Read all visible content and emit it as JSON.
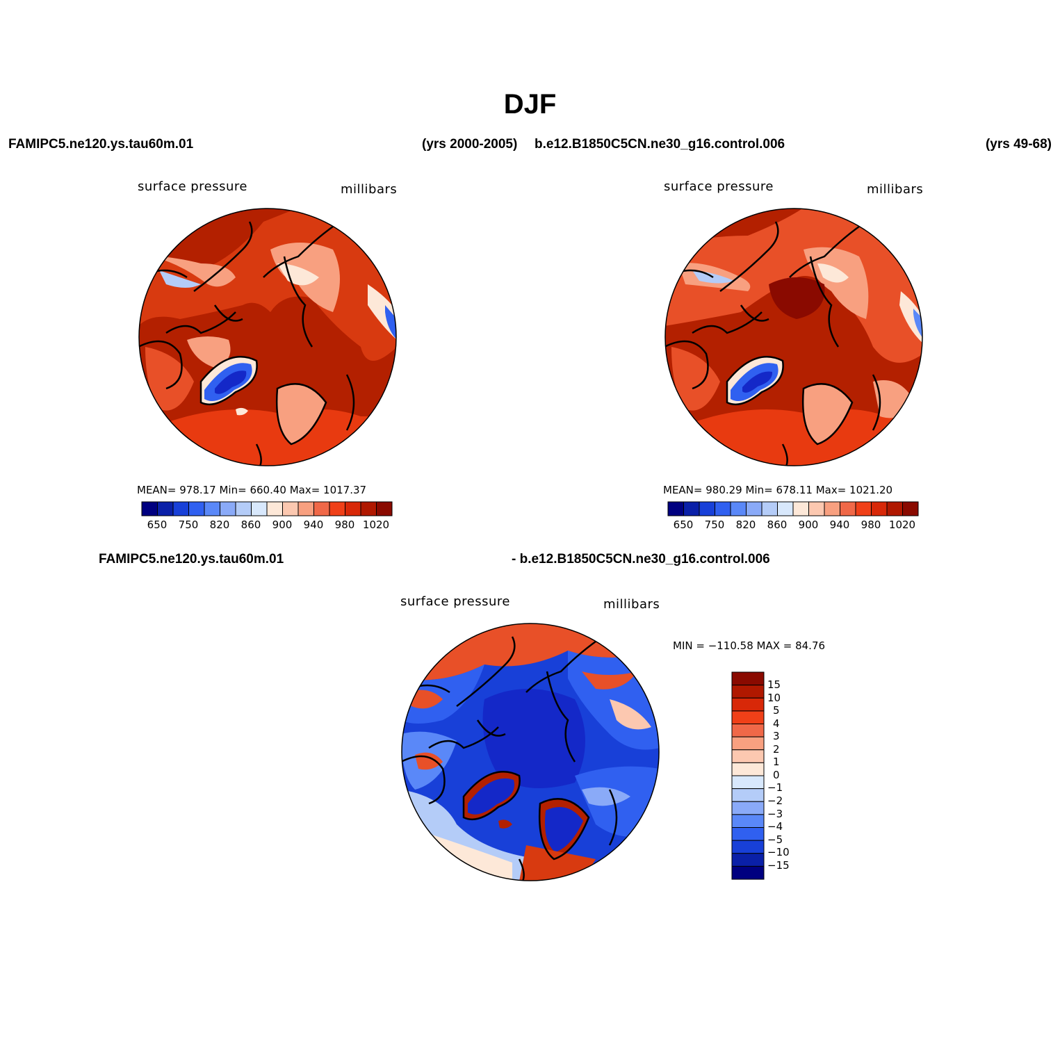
{
  "title": "DJF",
  "top_left_label": "FAMIPC5.ne120.ys.tau60m.01",
  "top_mid_label": "(yrs 2000-2005)",
  "top_mid2_label": "b.e12.B1850C5CN.ne30_g16.control.006",
  "top_right_label": "(yrs 49-68)",
  "panels": [
    {
      "variable": "surface pressure",
      "units": "millibars",
      "stats": "MEAN=  978.17   Min=  660.40   Max=  1017.37"
    },
    {
      "variable": "surface pressure",
      "units": "millibars",
      "stats": "MEAN=  980.29   Min=  678.11   Max=  1021.20"
    },
    {
      "variable": "surface pressure",
      "units": "millibars",
      "stats": "MIN = −110.58 MAX =   84.76"
    }
  ],
  "diff_label_left": "FAMIPC5.ne120.ys.tau60m.01",
  "diff_label_right": "- b.e12.B1850C5CN.ne30_g16.control.006",
  "horizontal_colorbar": {
    "colors": [
      "#000080",
      "#0a20a8",
      "#1840d8",
      "#3060f0",
      "#5a88f8",
      "#8aaaf8",
      "#b4ccf8",
      "#d8e8fc",
      "#fde8d8",
      "#fcc8b0",
      "#f8a080",
      "#f06848",
      "#f04018",
      "#d82808",
      "#b01800",
      "#8a0a00"
    ],
    "tick_labels": [
      "650",
      "750",
      "820",
      "860",
      "900",
      "940",
      "980",
      "1020"
    ]
  },
  "vertical_colorbar": {
    "colors_top_to_bottom": [
      "#8a0a00",
      "#b01800",
      "#d82808",
      "#f04018",
      "#f06848",
      "#f8a080",
      "#fcc8b0",
      "#fde8d8",
      "#d8e8fc",
      "#b4ccf8",
      "#8aaaf8",
      "#5a88f8",
      "#3060f0",
      "#1840d8",
      "#0a20a8",
      "#000080"
    ],
    "tick_labels": [
      "15",
      "10",
      "5",
      "4",
      "3",
      "2",
      "1",
      "0",
      "−1",
      "−2",
      "−3",
      "−4",
      "−5",
      "−10",
      "−15"
    ]
  },
  "map_palette": {
    "dark_red": "#b32000",
    "mid_red": "#d83a10",
    "orange_red": "#e85028",
    "salmon": "#f8a080",
    "pale": "#fde8d8",
    "light_blue": "#d8e8fc",
    "blue": "#3060f0",
    "deep_blue": "#1428c8",
    "navy": "#000080",
    "maroon": "#8a0a00"
  }
}
